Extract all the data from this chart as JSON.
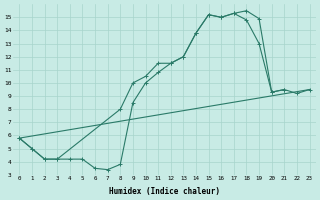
{
  "bg_color": "#c8ebe5",
  "grid_color": "#a8d5cc",
  "line_color": "#2a7a68",
  "xlabel": "Humidex (Indice chaleur)",
  "line1_x": [
    0,
    1,
    2,
    3,
    4,
    5,
    6,
    7,
    8,
    9,
    10,
    11,
    12,
    13,
    14,
    15,
    16,
    17,
    18,
    19,
    20,
    21
  ],
  "line1_y": [
    5.8,
    5.0,
    4.2,
    4.2,
    4.2,
    4.2,
    3.5,
    3.4,
    3.8,
    8.5,
    10.0,
    10.8,
    11.5,
    12.0,
    13.8,
    15.2,
    15.0,
    15.3,
    14.8,
    13.0,
    9.3,
    9.5
  ],
  "line2_x": [
    0,
    1,
    2,
    3,
    8,
    9,
    10,
    11,
    12,
    13,
    14,
    15,
    16,
    17,
    18,
    19,
    20,
    21,
    22,
    23
  ],
  "line2_y": [
    5.8,
    5.0,
    4.2,
    4.2,
    8.0,
    10.0,
    10.5,
    11.5,
    11.5,
    12.0,
    13.8,
    15.2,
    15.0,
    15.3,
    15.5,
    14.9,
    9.3,
    9.5,
    9.2,
    9.5
  ],
  "line3_x": [
    0,
    23
  ],
  "line3_y": [
    5.8,
    9.5
  ],
  "xlim": [
    -0.5,
    23.5
  ],
  "ylim": [
    3,
    16
  ]
}
